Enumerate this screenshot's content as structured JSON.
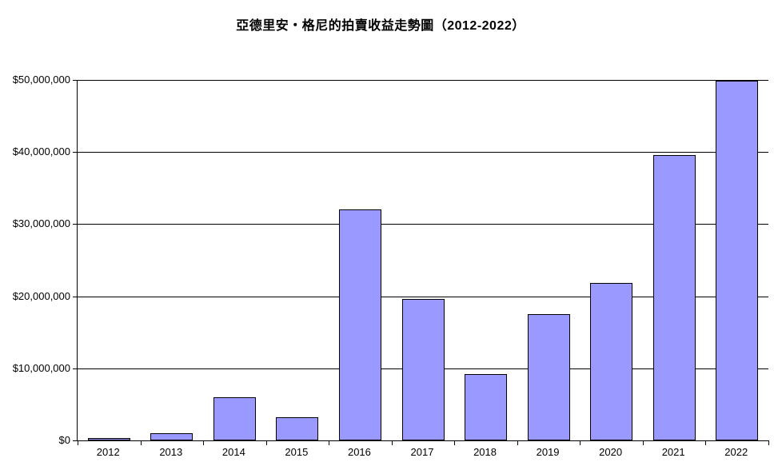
{
  "title": "亞德里安・格尼的拍賣收益走勢圖（2012-2022）",
  "chart_data": {
    "type": "bar",
    "title": "亞德里安・格尼的拍賣收益走勢圖（2012-2022）",
    "categories": [
      "2012",
      "2013",
      "2014",
      "2015",
      "2016",
      "2017",
      "2018",
      "2019",
      "2020",
      "2021",
      "2022"
    ],
    "values": [
      300000,
      1000000,
      6000000,
      3200000,
      32000000,
      19600000,
      9200000,
      17500000,
      21800000,
      39600000,
      49900000
    ],
    "series_name": "拍賣收益",
    "xlabel": "",
    "ylabel": "",
    "ylim": [
      0,
      50000000
    ],
    "ytick_interval": 10000000,
    "ytick_labels": [
      "$0",
      "$10,000,000",
      "$20,000,000",
      "$30,000,000",
      "$40,000,000",
      "$50,000,000"
    ],
    "grid": true,
    "legend": "none",
    "bar_color": "#9999FF",
    "bar_border_color": "#000000",
    "axis_color": "#000000",
    "background_color": "#FFFFFF",
    "text_color": "#000000"
  }
}
